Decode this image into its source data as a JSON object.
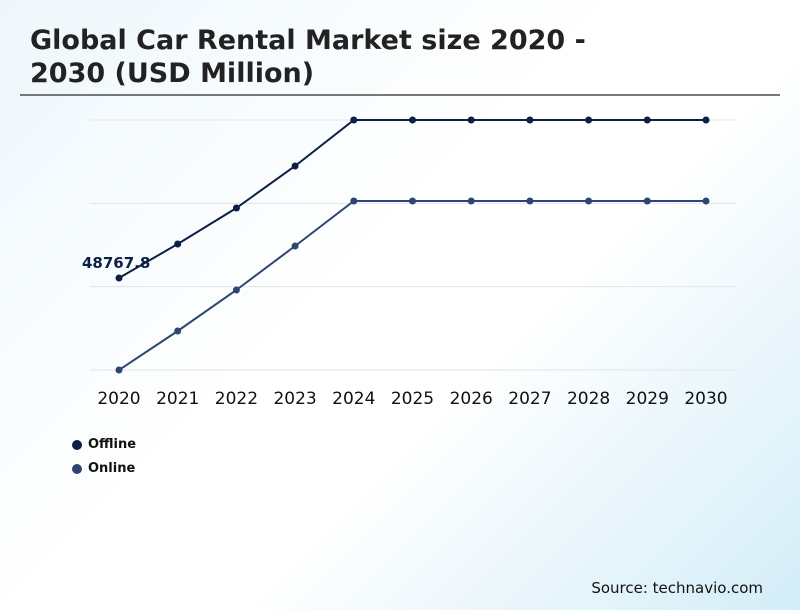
{
  "chart_data": {
    "type": "line",
    "title": "Global Car Rental Market size 2020 - 2030 (USD Million)",
    "x": [
      "2020",
      "2021",
      "2022",
      "2023",
      "2024",
      "2025",
      "2026",
      "2027",
      "2028",
      "2029",
      "2030"
    ],
    "series": [
      {
        "name": "Offline",
        "color": "#0d1f45",
        "values": [
          48767.8,
          66790,
          85870,
          108140,
          132520,
          132520,
          132520,
          132520,
          132520,
          132520,
          132520
        ]
      },
      {
        "name": "Online",
        "color": "#2e4474",
        "values": [
          0,
          20670,
          42410,
          65730,
          89590,
          89590,
          89590,
          89590,
          89590,
          89590,
          89590
        ]
      }
    ],
    "annotations": [
      {
        "x": "2020",
        "series": "Offline",
        "text": "48767.8"
      }
    ],
    "ylim": [
      0,
      132520
    ],
    "grid": true,
    "y_axis_labels_shown": false,
    "legend_placement": "bottom-left"
  },
  "source": "Source: technavio.com"
}
